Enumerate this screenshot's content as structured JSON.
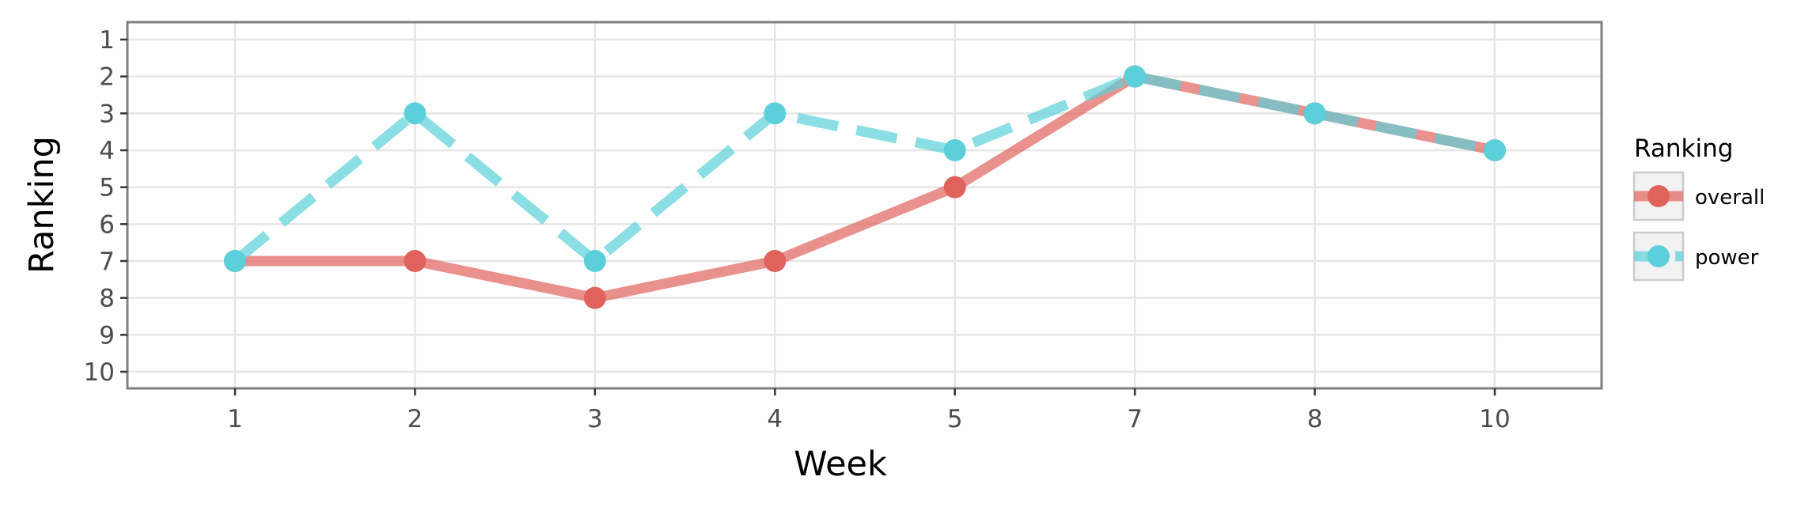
{
  "chart_data": {
    "type": "line",
    "categories": [
      "1",
      "2",
      "3",
      "4",
      "5",
      "7",
      "8",
      "10"
    ],
    "xlabel": "Week",
    "ylabel": "Ranking",
    "y_ticks": [
      "1",
      "2",
      "3",
      "4",
      "5",
      "6",
      "7",
      "8",
      "9",
      "10"
    ],
    "ylim": [
      1,
      10
    ],
    "y_reversed": true,
    "grid": true,
    "legend": {
      "title": "Ranking",
      "position": "right"
    },
    "series": [
      {
        "name": "overall",
        "values": [
          7,
          7,
          8,
          7,
          5,
          2,
          3,
          4
        ],
        "color": "#e0625c",
        "line_style": "solid"
      },
      {
        "name": "power",
        "values": [
          7,
          3,
          7,
          3,
          4,
          2,
          3,
          4
        ],
        "color": "#5bd0da",
        "line_style": "dashed"
      }
    ]
  }
}
